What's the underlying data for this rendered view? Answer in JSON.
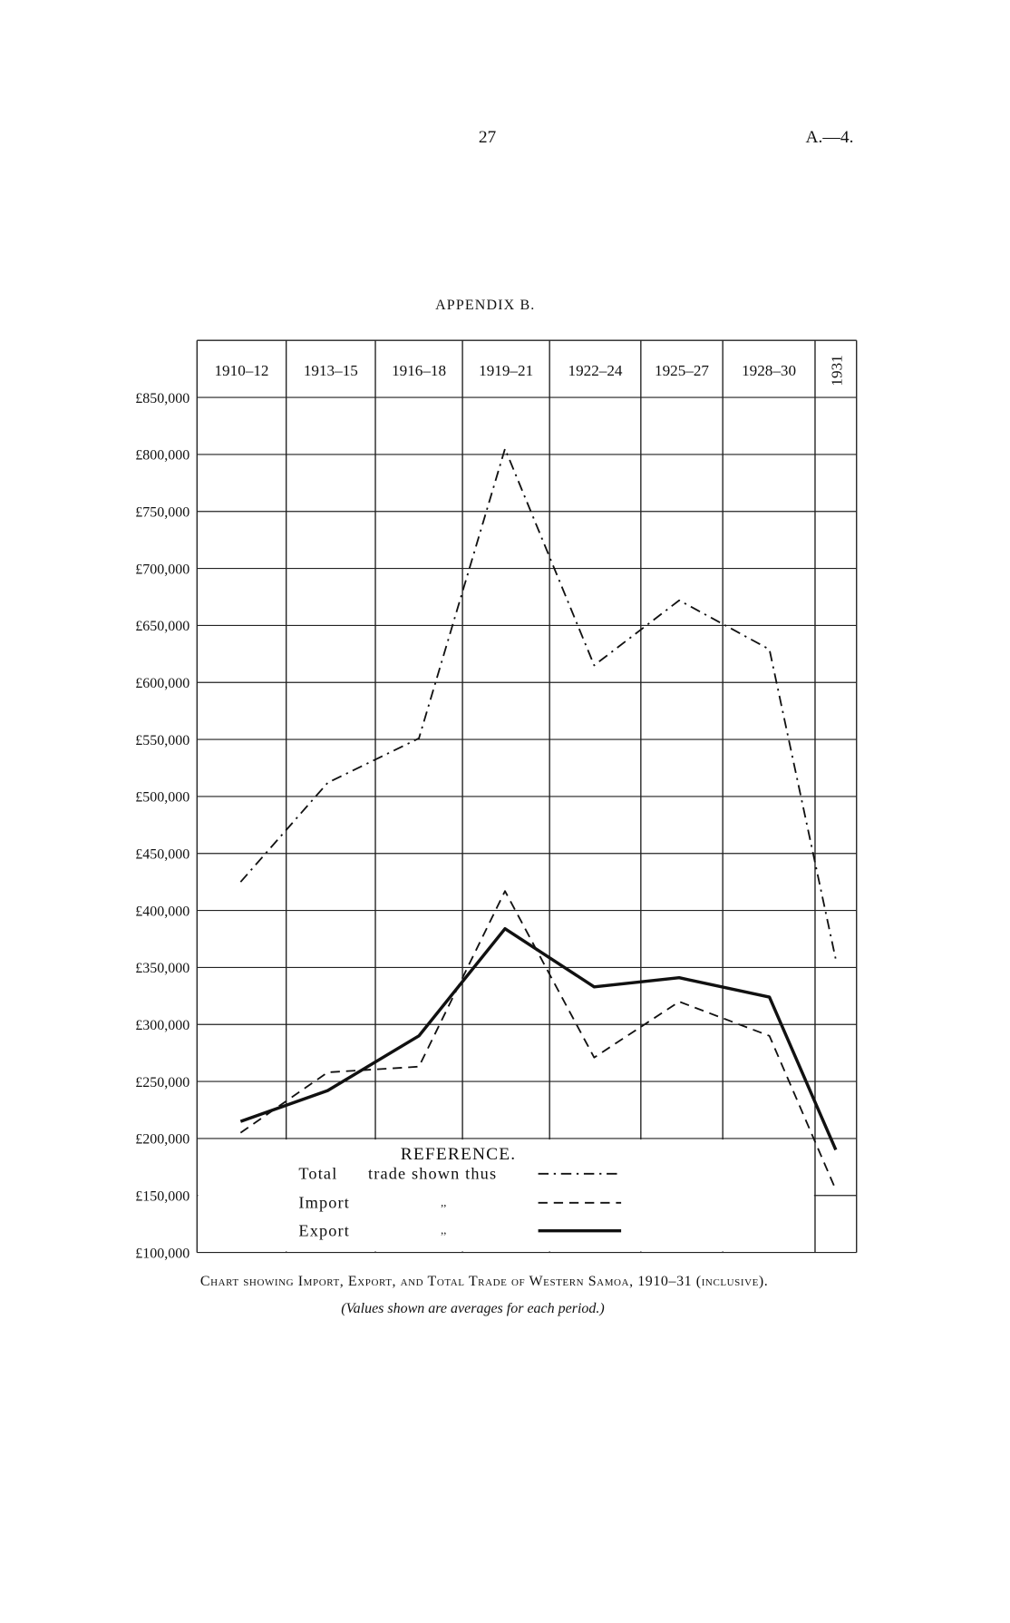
{
  "header": {
    "page_number": "27",
    "reference": "A.—4."
  },
  "appendix": "APPENDIX B.",
  "chart_data": {
    "type": "line",
    "categories": [
      "1910–12",
      "1913–15",
      "1916–18",
      "1919–21",
      "1922–24",
      "1925–27",
      "1928–30",
      "1931"
    ],
    "series": [
      {
        "name": "Total",
        "color": "#111111",
        "dash": "dash-dot",
        "values": [
          425000,
          512000,
          551000,
          805000,
          615000,
          672000,
          629000,
          357000
        ]
      },
      {
        "name": "Import",
        "color": "#111111",
        "dash": "dash",
        "values": [
          205000,
          258000,
          263000,
          417000,
          271000,
          320000,
          290000,
          155000
        ]
      },
      {
        "name": "Export",
        "color": "#111111",
        "dash": "solid",
        "values": [
          215000,
          242000,
          290000,
          384000,
          333000,
          341000,
          324000,
          190000
        ]
      }
    ],
    "ylim": [
      100000,
      900000
    ],
    "yticks": [
      {
        "value": 100000,
        "label": "£100,000"
      },
      {
        "value": 150000,
        "label": "£150,000"
      },
      {
        "value": 200000,
        "label": "£200,000"
      },
      {
        "value": 250000,
        "label": "£250,000"
      },
      {
        "value": 300000,
        "label": "£300,000"
      },
      {
        "value": 350000,
        "label": "£350,000"
      },
      {
        "value": 400000,
        "label": "£400,000"
      },
      {
        "value": 450000,
        "label": "£450,000"
      },
      {
        "value": 500000,
        "label": "£500,000"
      },
      {
        "value": 550000,
        "label": "£550,000"
      },
      {
        "value": 600000,
        "label": "£600,000"
      },
      {
        "value": 650000,
        "label": "£650,000"
      },
      {
        "value": 700000,
        "label": "£700,000"
      },
      {
        "value": 750000,
        "label": "£750,000"
      },
      {
        "value": 800000,
        "label": "£800,000"
      },
      {
        "value": 850000,
        "label": "£850,000"
      }
    ],
    "grid": true,
    "legend": {
      "title": "REFERENCE.",
      "total_suffix": "trade shown thus",
      "ditto": ",,"
    },
    "caption": "Chart showing Import, Export, and Total Trade of Western Samoa, 1910–31 (inclusive).",
    "note": "(Values shown are averages for each period.)"
  }
}
